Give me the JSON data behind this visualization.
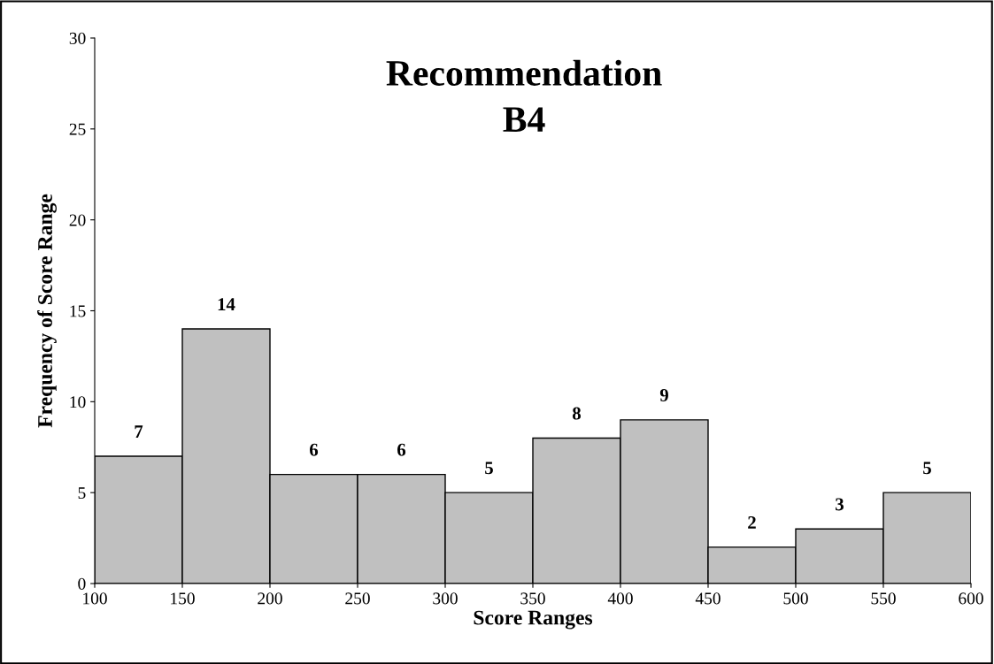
{
  "chart_data": {
    "type": "histogram",
    "title": "Recommendation\nB4",
    "xlabel": "Score Ranges",
    "ylabel": "Frequency of Score Range",
    "bins": [
      100,
      150,
      200,
      250,
      300,
      350,
      400,
      450,
      500,
      550,
      600
    ],
    "values": [
      7,
      14,
      6,
      6,
      5,
      8,
      9,
      2,
      3,
      5
    ],
    "color": "#c0c0c0",
    "data_labels": true,
    "grid": false,
    "legend": false,
    "xlim": [
      100,
      600
    ],
    "xticks": [
      100,
      150,
      200,
      250,
      300,
      350,
      400,
      450,
      500,
      550,
      600
    ],
    "ylim": [
      0,
      30
    ],
    "yticks": [
      0,
      5,
      10,
      15,
      20,
      25,
      30
    ]
  }
}
